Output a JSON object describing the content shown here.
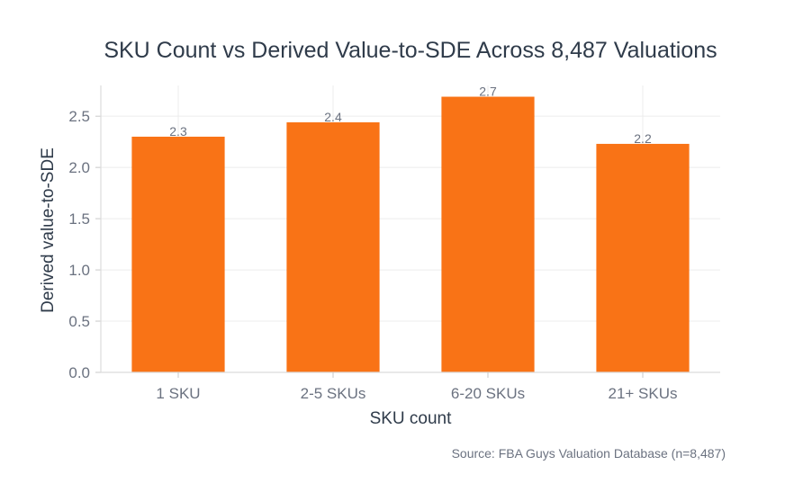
{
  "chart_data": {
    "type": "bar",
    "title": "SKU Count vs Derived Value-to-SDE Across 8,487 Valuations",
    "xlabel": "SKU count",
    "ylabel": "Derived value-to-SDE",
    "categories": [
      "1 SKU",
      "2-5 SKUs",
      "6-20 SKUs",
      "21+ SKUs"
    ],
    "values": [
      2.3,
      2.44,
      2.69,
      2.23
    ],
    "data_labels": [
      "2.3",
      "2.4",
      "2.7",
      "2.2"
    ],
    "yticks": [
      0.0,
      0.5,
      1.0,
      1.5,
      2.0,
      2.5
    ],
    "ytick_labels": [
      "0.0",
      "0.5",
      "1.0",
      "1.5",
      "2.0",
      "2.5"
    ],
    "ylim": [
      0,
      2.8
    ],
    "grid": true,
    "bar_color": "#f97316",
    "source": "Source: FBA Guys Valuation Database (n=8,487)"
  }
}
